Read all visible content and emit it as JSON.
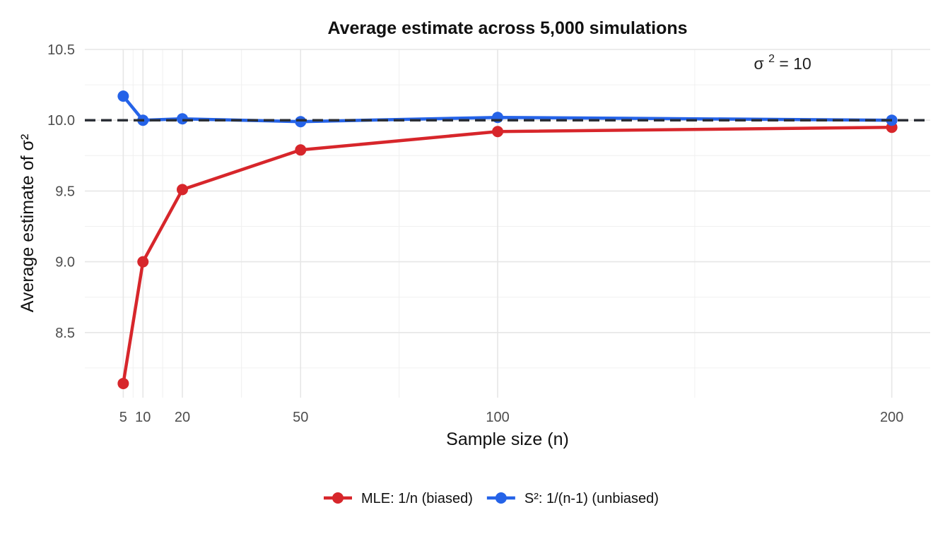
{
  "chart_data": {
    "type": "line",
    "title": "Average estimate across 5,000 simulations",
    "xlabel": "Sample size (n)",
    "ylabel": "Average estimate of σ²",
    "x": [
      5,
      10,
      20,
      50,
      100,
      200
    ],
    "x_ticks": [
      5,
      10,
      20,
      50,
      100,
      200
    ],
    "x_tick_labels": [
      "5",
      "10",
      "20",
      "50",
      "100",
      "200"
    ],
    "y_ticks": [
      8.5,
      9.0,
      9.5,
      10.0,
      10.5
    ],
    "y_tick_labels": [
      "8.5",
      "9.0",
      "9.5",
      "10.0",
      "10.5"
    ],
    "xlim": [
      -4.75,
      209.75
    ],
    "ylim": [
      8.04,
      10.5
    ],
    "grid": true,
    "legend_position": "bottom",
    "series": [
      {
        "name": "MLE: 1/n (biased)",
        "color": "#d7262b",
        "values": [
          8.14,
          9.0,
          9.51,
          9.79,
          9.92,
          9.95
        ]
      },
      {
        "name": "S²: 1/(n-1) (unbiased)",
        "color": "#2563e8",
        "values": [
          10.17,
          10.0,
          10.01,
          9.99,
          10.02,
          10.0
        ]
      }
    ],
    "reference_line": {
      "y": 10.0,
      "style": "dashed",
      "color": "#2b2f36"
    },
    "annotation": {
      "symbol": "σ",
      "superscript": "2",
      "equals": " = 10",
      "x": 165,
      "y": 10.36
    }
  }
}
